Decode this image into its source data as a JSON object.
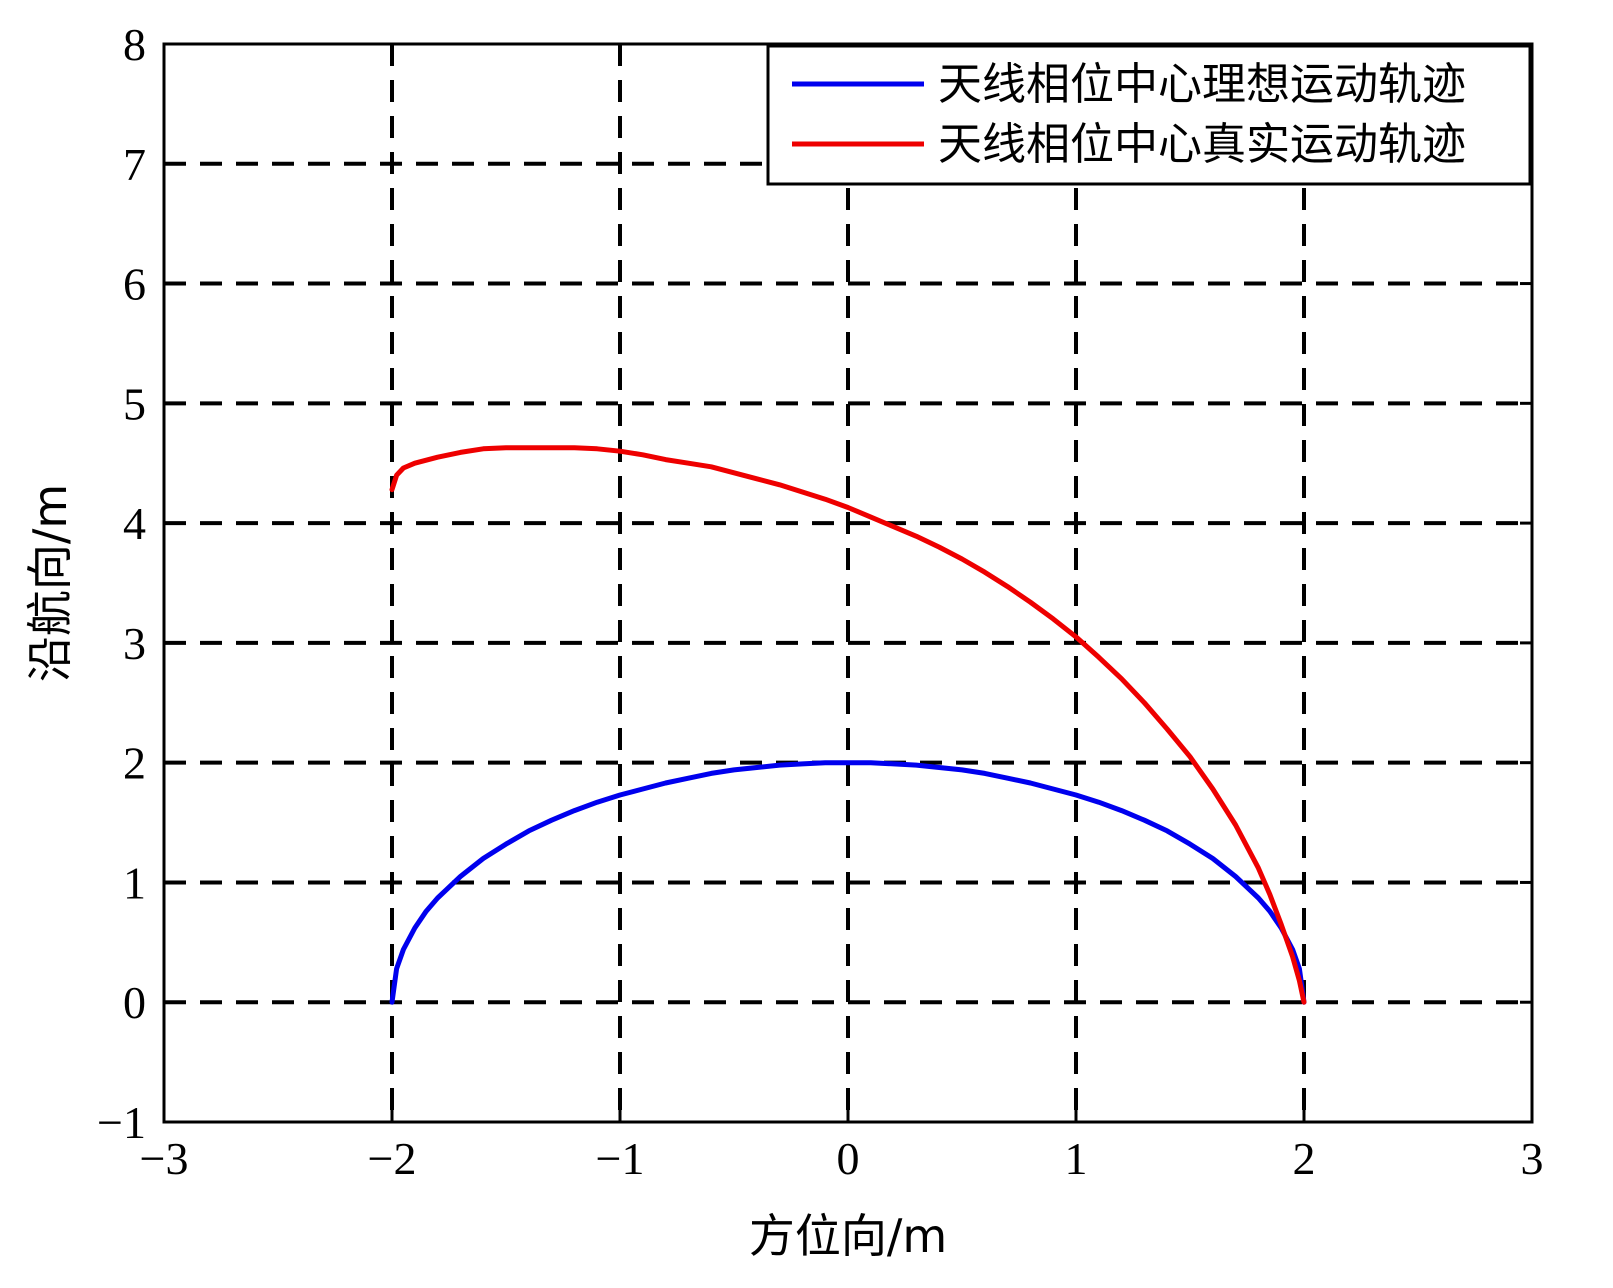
{
  "chart_data": {
    "type": "line",
    "title": "",
    "xlabel": "方位向/m",
    "ylabel": "沿航向/m",
    "xlim": [
      -3,
      3
    ],
    "ylim": [
      -1,
      8
    ],
    "xticks": [
      -3,
      -2,
      -1,
      0,
      1,
      2,
      3
    ],
    "yticks": [
      -1,
      0,
      1,
      2,
      3,
      4,
      5,
      6,
      7,
      8
    ],
    "xtick_labels": [
      "−3",
      "−2",
      "−1",
      "0",
      "1",
      "2",
      "3"
    ],
    "ytick_labels": [
      "−1",
      "0",
      "1",
      "2",
      "3",
      "4",
      "5",
      "6",
      "7",
      "8"
    ],
    "grid": true,
    "grid_style": "dashed",
    "legend": "top-right",
    "series": [
      {
        "name": "天线相位中心理想运动轨迹",
        "color": "#0000ee",
        "x": [
          -2,
          -1.98,
          -1.95,
          -1.9,
          -1.85,
          -1.8,
          -1.7,
          -1.6,
          -1.5,
          -1.4,
          -1.3,
          -1.2,
          -1.1,
          -1.0,
          -0.9,
          -0.8,
          -0.7,
          -0.6,
          -0.5,
          -0.4,
          -0.3,
          -0.2,
          -0.1,
          0,
          0.1,
          0.2,
          0.3,
          0.4,
          0.5,
          0.6,
          0.7,
          0.8,
          0.9,
          1.0,
          1.1,
          1.2,
          1.3,
          1.4,
          1.5,
          1.6,
          1.7,
          1.8,
          1.85,
          1.9,
          1.95,
          1.98,
          2.0
        ],
        "y": [
          0,
          0.28,
          0.44,
          0.62,
          0.76,
          0.87,
          1.05,
          1.2,
          1.32,
          1.43,
          1.52,
          1.6,
          1.67,
          1.73,
          1.78,
          1.83,
          1.87,
          1.91,
          1.94,
          1.96,
          1.98,
          1.99,
          2.0,
          2.0,
          2.0,
          1.99,
          1.98,
          1.96,
          1.94,
          1.91,
          1.87,
          1.83,
          1.78,
          1.73,
          1.67,
          1.6,
          1.52,
          1.43,
          1.32,
          1.2,
          1.05,
          0.87,
          0.76,
          0.62,
          0.44,
          0.28,
          0
        ]
      },
      {
        "name": "天线相位中心真实运动轨迹",
        "color": "#ee0000",
        "x": [
          -2.0,
          -1.98,
          -1.95,
          -1.9,
          -1.8,
          -1.7,
          -1.6,
          -1.5,
          -1.4,
          -1.3,
          -1.2,
          -1.1,
          -1.0,
          -0.9,
          -0.8,
          -0.7,
          -0.6,
          -0.5,
          -0.4,
          -0.3,
          -0.2,
          -0.1,
          0,
          0.1,
          0.2,
          0.3,
          0.4,
          0.5,
          0.6,
          0.7,
          0.8,
          0.9,
          1.0,
          1.1,
          1.2,
          1.3,
          1.4,
          1.5,
          1.6,
          1.7,
          1.8,
          1.85,
          1.9,
          1.95,
          1.98,
          2.0
        ],
        "y": [
          4.28,
          4.4,
          4.46,
          4.5,
          4.55,
          4.59,
          4.62,
          4.63,
          4.63,
          4.63,
          4.63,
          4.62,
          4.6,
          4.57,
          4.53,
          4.5,
          4.47,
          4.42,
          4.37,
          4.32,
          4.26,
          4.2,
          4.13,
          4.05,
          3.97,
          3.89,
          3.8,
          3.7,
          3.59,
          3.47,
          3.34,
          3.2,
          3.05,
          2.88,
          2.7,
          2.5,
          2.28,
          2.05,
          1.78,
          1.48,
          1.12,
          0.9,
          0.65,
          0.38,
          0.18,
          0
        ]
      }
    ]
  }
}
